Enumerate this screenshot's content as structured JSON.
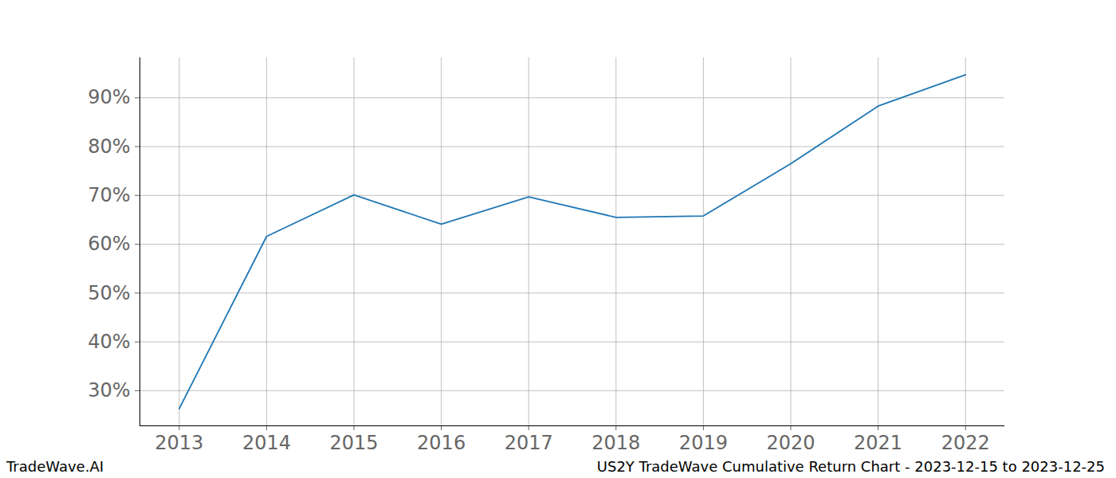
{
  "chart_data": {
    "type": "line",
    "footer_left": "TradeWave.AI",
    "footer_right": "US2Y TradeWave Cumulative Return Chart - 2023-12-15 to 2023-12-25",
    "x": [
      2013,
      2014,
      2015,
      2016,
      2017,
      2018,
      2019,
      2020,
      2021,
      2022
    ],
    "values": [
      26.3,
      61.6,
      70.1,
      64.1,
      69.7,
      65.5,
      65.8,
      76.5,
      88.3,
      94.7
    ],
    "color": "#1f77b4",
    "xlim": [
      2012.55,
      2022.45
    ],
    "xticks": [
      2013,
      2014,
      2015,
      2016,
      2017,
      2018,
      2019,
      2020,
      2021,
      2022
    ],
    "ylim": [
      22.8,
      98.2
    ],
    "yticks": [
      {
        "value": 30,
        "label": "30%"
      },
      {
        "value": 40,
        "label": "40%"
      },
      {
        "value": 50,
        "label": "50%"
      },
      {
        "value": 60,
        "label": "60%"
      },
      {
        "value": 70,
        "label": "70%"
      },
      {
        "value": 80,
        "label": "80%"
      },
      {
        "value": 90,
        "label": "90%"
      }
    ],
    "grid": true
  }
}
